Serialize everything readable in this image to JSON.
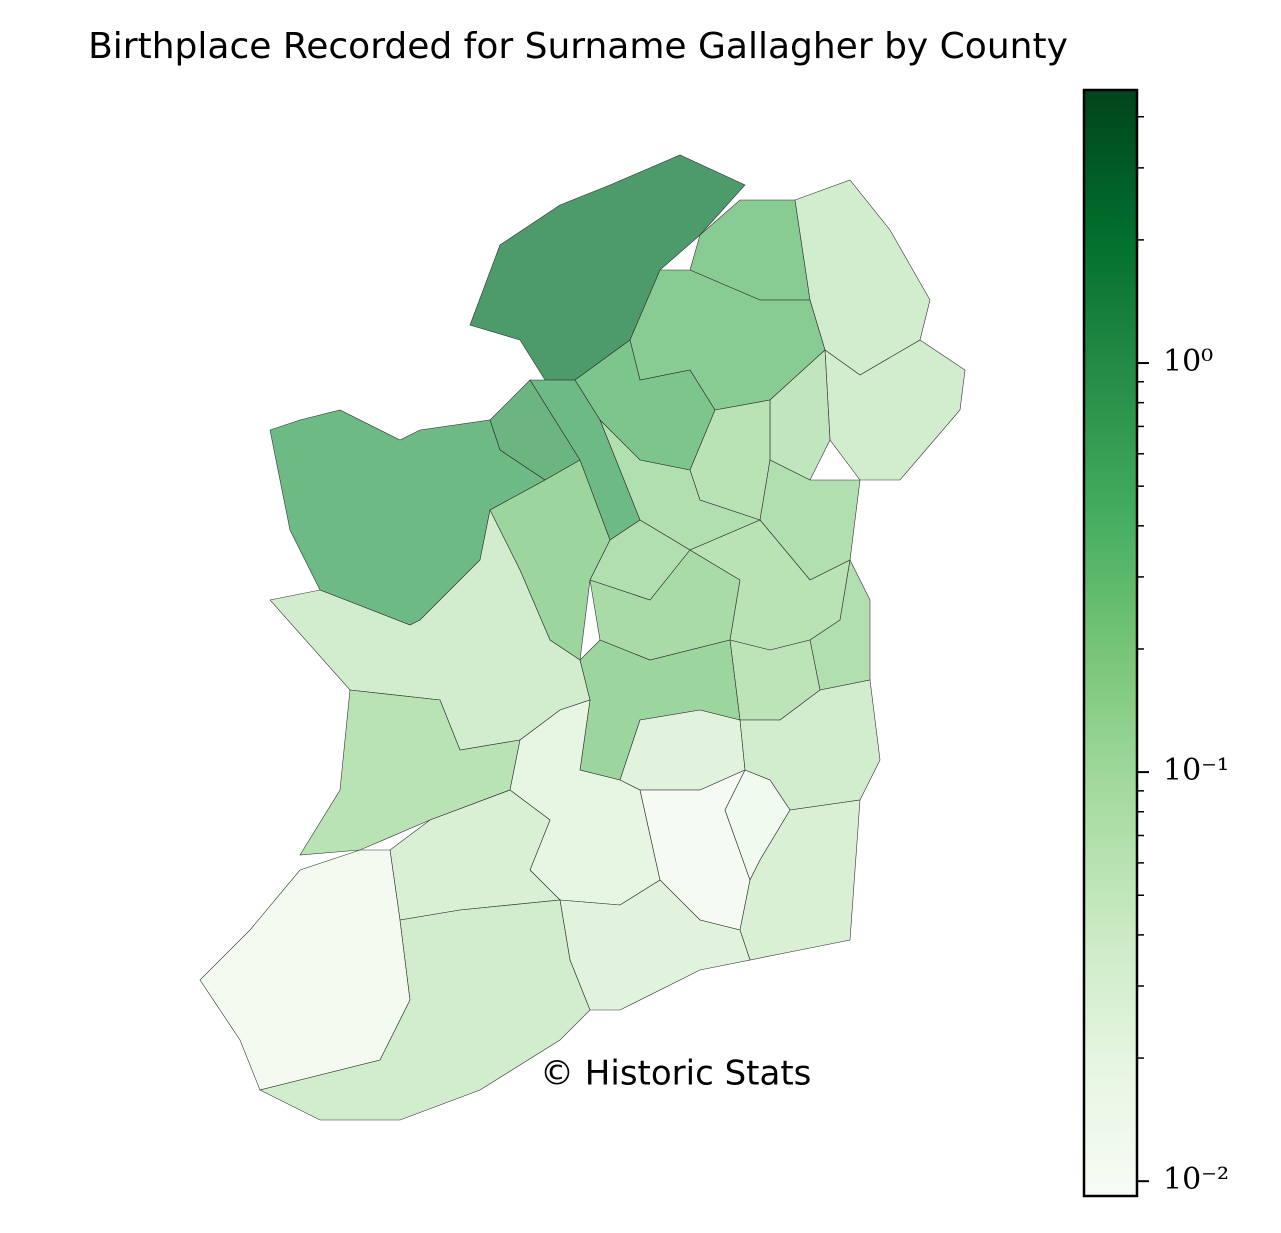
{
  "chart_data": {
    "type": "choropleth",
    "title": "Birthplace Recorded for Surname Gallagher by County",
    "annotation": "© Historic Stats",
    "values": [
      1.8,
      0.3,
      0.05,
      0.3,
      0.05,
      0.08,
      0.4,
      0.1,
      0.12,
      0.12,
      0.6,
      0.7,
      0.6,
      0.2,
      0.12,
      0.15,
      0.1,
      0.12,
      0.09,
      0.2,
      0.05,
      0.1,
      0.03,
      0.05,
      0.025,
      0.012,
      0.015,
      0.04,
      0.04,
      0.03,
      0.013,
      0.05
    ],
    "scale": "log",
    "colormap_colors": [
      "#f7fcf5",
      "#e5f5e0",
      "#c7e9c0",
      "#a1d99b",
      "#74c476",
      "#41ab5d",
      "#238b45",
      "#006d2c",
      "#00441b"
    ],
    "zlim": [
      0.0092,
      4.65
    ],
    "zticks": [
      {
        "value": 0.01,
        "label": "10⁻²"
      },
      {
        "value": 0.1,
        "label": "10⁻¹"
      },
      {
        "value": 1,
        "label": "10⁰"
      }
    ],
    "zminorticks": [
      0.02,
      0.03,
      0.04,
      0.05,
      0.06,
      0.07,
      0.08,
      0.09,
      0.2,
      0.3,
      0.4,
      0.5,
      0.6,
      0.7,
      0.8,
      0.9,
      2,
      3,
      4
    ]
  }
}
